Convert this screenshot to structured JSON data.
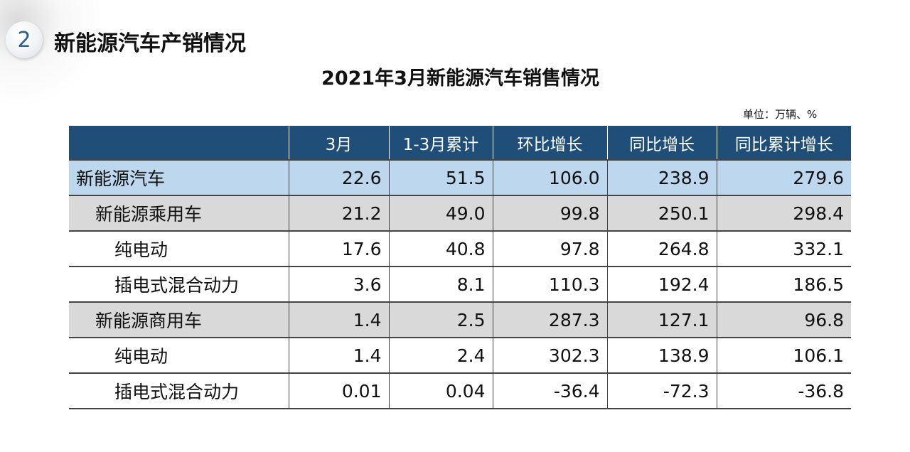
{
  "section": {
    "number": "2",
    "title": "新能源汽车产销情况"
  },
  "table_title": "2021年3月新能源汽车销售情况",
  "unit_note": "单位：万辆、%",
  "table": {
    "columns": [
      "",
      "3月",
      "1-3月累计",
      "环比增长",
      "同比增长",
      "同比累计增长"
    ],
    "rows": [
      {
        "level": 0,
        "label": "新能源汽车",
        "values": [
          "22.6",
          "51.5",
          "106.0",
          "238.9",
          "279.6"
        ]
      },
      {
        "level": 1,
        "label": "新能源乘用车",
        "values": [
          "21.2",
          "49.0",
          "99.8",
          "250.1",
          "298.4"
        ]
      },
      {
        "level": 2,
        "label": "纯电动",
        "values": [
          "17.6",
          "40.8",
          "97.8",
          "264.8",
          "332.1"
        ]
      },
      {
        "level": 2,
        "label": "插电式混合动力",
        "values": [
          "3.6",
          "8.1",
          "110.3",
          "192.4",
          "186.5"
        ]
      },
      {
        "level": 1,
        "label": "新能源商用车",
        "values": [
          "1.4",
          "2.5",
          "287.3",
          "127.1",
          "96.8"
        ]
      },
      {
        "level": 2,
        "label": "纯电动",
        "values": [
          "1.4",
          "2.4",
          "302.3",
          "138.9",
          "106.1"
        ]
      },
      {
        "level": 2,
        "label": "插电式混合动力",
        "values": [
          "0.01",
          "0.04",
          "-36.4",
          "-72.3",
          "-36.8"
        ]
      }
    ]
  },
  "colors": {
    "header_bg": "#1f4e79",
    "total_row_bg": "#bdd7ee",
    "subtotal_row_bg": "#d9d9d9",
    "badge_text": "#2e5d8f"
  }
}
